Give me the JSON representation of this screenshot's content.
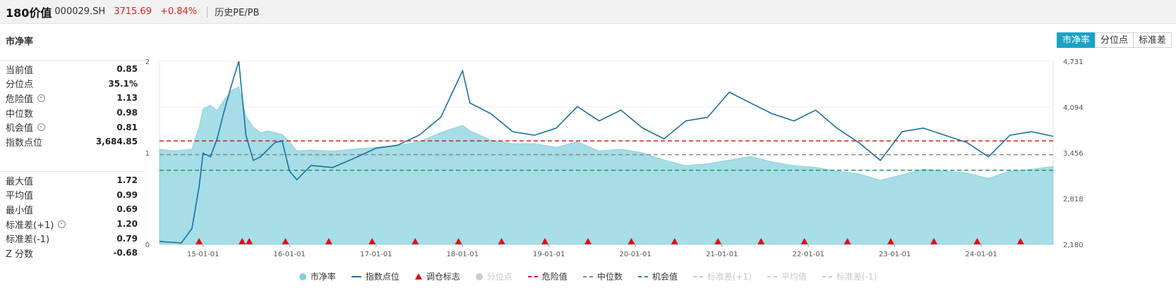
{
  "header": {
    "name": "180价值",
    "code": "000029.SH",
    "price": "3715.69",
    "change": "+0.84%",
    "link": "历史PE/PB"
  },
  "section_title": "市净率",
  "toggles": [
    {
      "label": "市净率",
      "active": true
    },
    {
      "label": "分位点",
      "active": false
    },
    {
      "label": "标准差",
      "active": false
    }
  ],
  "stats_top": [
    {
      "label": "当前值",
      "value": "0.85",
      "gear": false
    },
    {
      "label": "分位点",
      "value": "35.1%",
      "gear": false
    },
    {
      "label": "危险值",
      "value": "1.13",
      "gear": true
    },
    {
      "label": "中位数",
      "value": "0.98",
      "gear": false
    },
    {
      "label": "机会值",
      "value": "0.81",
      "gear": true
    },
    {
      "label": "指数点位",
      "value": "3,684.85",
      "gear": false
    }
  ],
  "stats_bottom": [
    {
      "label": "最大值",
      "value": "1.72",
      "gear": false
    },
    {
      "label": "平均值",
      "value": "0.99",
      "gear": false
    },
    {
      "label": "最小值",
      "value": "0.69",
      "gear": false
    },
    {
      "label": "标准差(+1)",
      "value": "1.20",
      "gear": true
    },
    {
      "label": "标准差(-1)",
      "value": "0.79",
      "gear": false
    },
    {
      "label": "Z 分数",
      "value": "-0.68",
      "gear": false
    }
  ],
  "legend": [
    {
      "label": "市净率",
      "mark": "circle",
      "color": "#7fd0dc",
      "on": true
    },
    {
      "label": "指数点位",
      "mark": "line",
      "color": "#1b6fa0",
      "on": true
    },
    {
      "label": "调仓标志",
      "mark": "triangle",
      "color": "#e8001c",
      "on": true
    },
    {
      "label": "分位点",
      "mark": "circle",
      "color": "#cccccc",
      "on": false
    },
    {
      "label": "危险值",
      "mark": "dash",
      "color": "#d42020",
      "on": true
    },
    {
      "label": "中位数",
      "mark": "dash",
      "color": "#888888",
      "on": true
    },
    {
      "label": "机会值",
      "mark": "dash",
      "color": "#1a9a5a",
      "on": true
    },
    {
      "label": "标准差(+1)",
      "mark": "dash",
      "color": "#cccccc",
      "on": false
    },
    {
      "label": "平均值",
      "mark": "dash",
      "color": "#cccccc",
      "on": false
    },
    {
      "label": "标准差(-1)",
      "mark": "dash",
      "color": "#cccccc",
      "on": false
    }
  ],
  "chart_data": {
    "type": "area",
    "x_range": [
      "2014-07-01",
      "2024-10-31"
    ],
    "x_ticks": [
      "15-01-01",
      "16-01-01",
      "17-01-01",
      "18-01-01",
      "19-01-01",
      "20-01-01",
      "21-01-01",
      "22-01-01",
      "23-01-01",
      "24-01-01"
    ],
    "y_left": {
      "ticks": [
        "0",
        "1",
        "2"
      ],
      "range": [
        0,
        2
      ]
    },
    "y_right": {
      "ticks": [
        "2,180",
        "2,818",
        "3,456",
        "4,094",
        "4,731"
      ],
      "range": [
        2180,
        4731
      ]
    },
    "reference_lines": {
      "danger": 1.13,
      "median": 0.98,
      "opportunity": 0.81
    },
    "pb_series": [
      {
        "x": "2014-07-01",
        "y": 1.04
      },
      {
        "x": "2014-09-01",
        "y": 1.02
      },
      {
        "x": "2014-11-15",
        "y": 1.04
      },
      {
        "x": "2014-12-15",
        "y": 1.28
      },
      {
        "x": "2015-01-01",
        "y": 1.48
      },
      {
        "x": "2015-02-01",
        "y": 1.52
      },
      {
        "x": "2015-03-01",
        "y": 1.46
      },
      {
        "x": "2015-04-01",
        "y": 1.58
      },
      {
        "x": "2015-05-01",
        "y": 1.68
      },
      {
        "x": "2015-06-01",
        "y": 1.72
      },
      {
        "x": "2015-07-01",
        "y": 1.4
      },
      {
        "x": "2015-08-01",
        "y": 1.28
      },
      {
        "x": "2015-09-01",
        "y": 1.22
      },
      {
        "x": "2015-10-01",
        "y": 1.24
      },
      {
        "x": "2015-11-01",
        "y": 1.22
      },
      {
        "x": "2015-12-01",
        "y": 1.2
      },
      {
        "x": "2016-01-01",
        "y": 1.12
      },
      {
        "x": "2016-02-01",
        "y": 1.02
      },
      {
        "x": "2016-04-01",
        "y": 1.03
      },
      {
        "x": "2016-07-01",
        "y": 1.02
      },
      {
        "x": "2016-10-01",
        "y": 1.04
      },
      {
        "x": "2017-01-01",
        "y": 1.06
      },
      {
        "x": "2017-04-01",
        "y": 1.08
      },
      {
        "x": "2017-07-01",
        "y": 1.12
      },
      {
        "x": "2017-10-01",
        "y": 1.22
      },
      {
        "x": "2018-01-01",
        "y": 1.3
      },
      {
        "x": "2018-02-01",
        "y": 1.24
      },
      {
        "x": "2018-05-01",
        "y": 1.14
      },
      {
        "x": "2018-08-01",
        "y": 1.1
      },
      {
        "x": "2018-11-01",
        "y": 1.1
      },
      {
        "x": "2019-02-01",
        "y": 1.06
      },
      {
        "x": "2019-05-01",
        "y": 1.12
      },
      {
        "x": "2019-08-01",
        "y": 1.02
      },
      {
        "x": "2019-11-01",
        "y": 1.04
      },
      {
        "x": "2020-02-01",
        "y": 1.0
      },
      {
        "x": "2020-05-01",
        "y": 0.92
      },
      {
        "x": "2020-08-01",
        "y": 0.86
      },
      {
        "x": "2020-11-01",
        "y": 0.88
      },
      {
        "x": "2021-02-01",
        "y": 0.92
      },
      {
        "x": "2021-05-01",
        "y": 0.96
      },
      {
        "x": "2021-08-01",
        "y": 0.9
      },
      {
        "x": "2021-11-01",
        "y": 0.86
      },
      {
        "x": "2022-02-01",
        "y": 0.84
      },
      {
        "x": "2022-05-01",
        "y": 0.8
      },
      {
        "x": "2022-08-01",
        "y": 0.77
      },
      {
        "x": "2022-11-01",
        "y": 0.7
      },
      {
        "x": "2023-02-01",
        "y": 0.76
      },
      {
        "x": "2023-05-01",
        "y": 0.82
      },
      {
        "x": "2023-08-01",
        "y": 0.8
      },
      {
        "x": "2023-11-01",
        "y": 0.78
      },
      {
        "x": "2024-02-01",
        "y": 0.72
      },
      {
        "x": "2024-05-01",
        "y": 0.8
      },
      {
        "x": "2024-08-01",
        "y": 0.82
      },
      {
        "x": "2024-10-31",
        "y": 0.85
      }
    ],
    "index_series": [
      {
        "x": "2014-07-01",
        "y": 2220
      },
      {
        "x": "2014-10-01",
        "y": 2200
      },
      {
        "x": "2014-11-15",
        "y": 2400
      },
      {
        "x": "2014-12-15",
        "y": 2980
      },
      {
        "x": "2015-01-01",
        "y": 3450
      },
      {
        "x": "2015-02-01",
        "y": 3400
      },
      {
        "x": "2015-03-01",
        "y": 3650
      },
      {
        "x": "2015-04-01",
        "y": 4050
      },
      {
        "x": "2015-05-01",
        "y": 4400
      },
      {
        "x": "2015-06-01",
        "y": 4731
      },
      {
        "x": "2015-07-01",
        "y": 3700
      },
      {
        "x": "2015-08-01",
        "y": 3350
      },
      {
        "x": "2015-09-01",
        "y": 3400
      },
      {
        "x": "2015-10-01",
        "y": 3500
      },
      {
        "x": "2015-11-01",
        "y": 3600
      },
      {
        "x": "2015-12-01",
        "y": 3620
      },
      {
        "x": "2016-01-01",
        "y": 3200
      },
      {
        "x": "2016-02-01",
        "y": 3080
      },
      {
        "x": "2016-04-01",
        "y": 3280
      },
      {
        "x": "2016-07-01",
        "y": 3250
      },
      {
        "x": "2016-10-01",
        "y": 3380
      },
      {
        "x": "2017-01-01",
        "y": 3520
      },
      {
        "x": "2017-04-01",
        "y": 3560
      },
      {
        "x": "2017-07-01",
        "y": 3700
      },
      {
        "x": "2017-10-01",
        "y": 3950
      },
      {
        "x": "2018-01-01",
        "y": 4600
      },
      {
        "x": "2018-02-01",
        "y": 4150
      },
      {
        "x": "2018-05-01",
        "y": 4000
      },
      {
        "x": "2018-08-01",
        "y": 3750
      },
      {
        "x": "2018-11-01",
        "y": 3700
      },
      {
        "x": "2019-02-01",
        "y": 3800
      },
      {
        "x": "2019-05-01",
        "y": 4100
      },
      {
        "x": "2019-08-01",
        "y": 3900
      },
      {
        "x": "2019-11-01",
        "y": 4050
      },
      {
        "x": "2020-02-01",
        "y": 3800
      },
      {
        "x": "2020-05-01",
        "y": 3650
      },
      {
        "x": "2020-08-01",
        "y": 3900
      },
      {
        "x": "2020-11-01",
        "y": 3950
      },
      {
        "x": "2021-02-01",
        "y": 4300
      },
      {
        "x": "2021-05-01",
        "y": 4150
      },
      {
        "x": "2021-08-01",
        "y": 4000
      },
      {
        "x": "2021-11-01",
        "y": 3900
      },
      {
        "x": "2022-02-01",
        "y": 4050
      },
      {
        "x": "2022-05-01",
        "y": 3800
      },
      {
        "x": "2022-08-01",
        "y": 3600
      },
      {
        "x": "2022-11-01",
        "y": 3350
      },
      {
        "x": "2023-02-01",
        "y": 3750
      },
      {
        "x": "2023-05-01",
        "y": 3800
      },
      {
        "x": "2023-08-01",
        "y": 3700
      },
      {
        "x": "2023-11-01",
        "y": 3600
      },
      {
        "x": "2024-02-01",
        "y": 3400
      },
      {
        "x": "2024-05-01",
        "y": 3700
      },
      {
        "x": "2024-08-01",
        "y": 3750
      },
      {
        "x": "2024-10-31",
        "y": 3685
      }
    ],
    "rebalance_markers": [
      "2014-12-15",
      "2015-06-15",
      "2015-07-15",
      "2015-12-15",
      "2016-06-15",
      "2016-12-15",
      "2017-06-15",
      "2017-12-15",
      "2018-06-15",
      "2018-12-15",
      "2019-06-15",
      "2019-12-15",
      "2020-06-15",
      "2020-12-15",
      "2021-06-15",
      "2021-12-15",
      "2022-06-15",
      "2022-12-15",
      "2023-06-15",
      "2023-12-15",
      "2024-06-15"
    ]
  }
}
